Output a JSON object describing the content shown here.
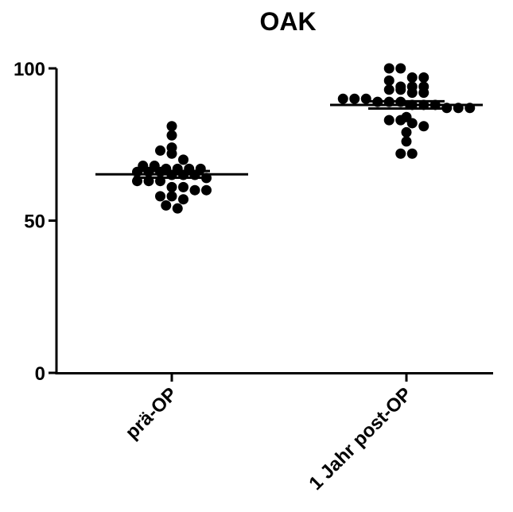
{
  "chart_data": {
    "type": "scatter",
    "title": "OAK",
    "xlabel": "",
    "ylabel": "",
    "ylim": [
      0,
      100
    ],
    "yticks": [
      0,
      50,
      100
    ],
    "ytick_labels": [
      "0",
      "50",
      "100"
    ],
    "categories": [
      "prä-OP",
      "1 Jahr post-OP"
    ],
    "series": [
      {
        "category": "prä-OP",
        "values": [
          81,
          78,
          74,
          73,
          72,
          70,
          68,
          68,
          67,
          67,
          67,
          67,
          66,
          66,
          66,
          65,
          65,
          65,
          64,
          63,
          63,
          63,
          61,
          61,
          60,
          60,
          58,
          58,
          57,
          55,
          54
        ],
        "mean": 65.2,
        "sem": 1.1
      },
      {
        "category": "1 Jahr post-OP",
        "values": [
          100,
          100,
          97,
          97,
          96,
          94,
          94,
          94,
          93,
          93,
          92,
          92,
          90,
          90,
          90,
          89,
          89,
          89,
          88,
          88,
          88,
          87,
          87,
          87,
          84,
          83,
          83,
          82,
          81,
          79,
          76,
          72,
          72
        ],
        "mean": 88,
        "sem": 1.2
      }
    ],
    "grid": false,
    "legend": "none",
    "marker_color": "#000000"
  }
}
